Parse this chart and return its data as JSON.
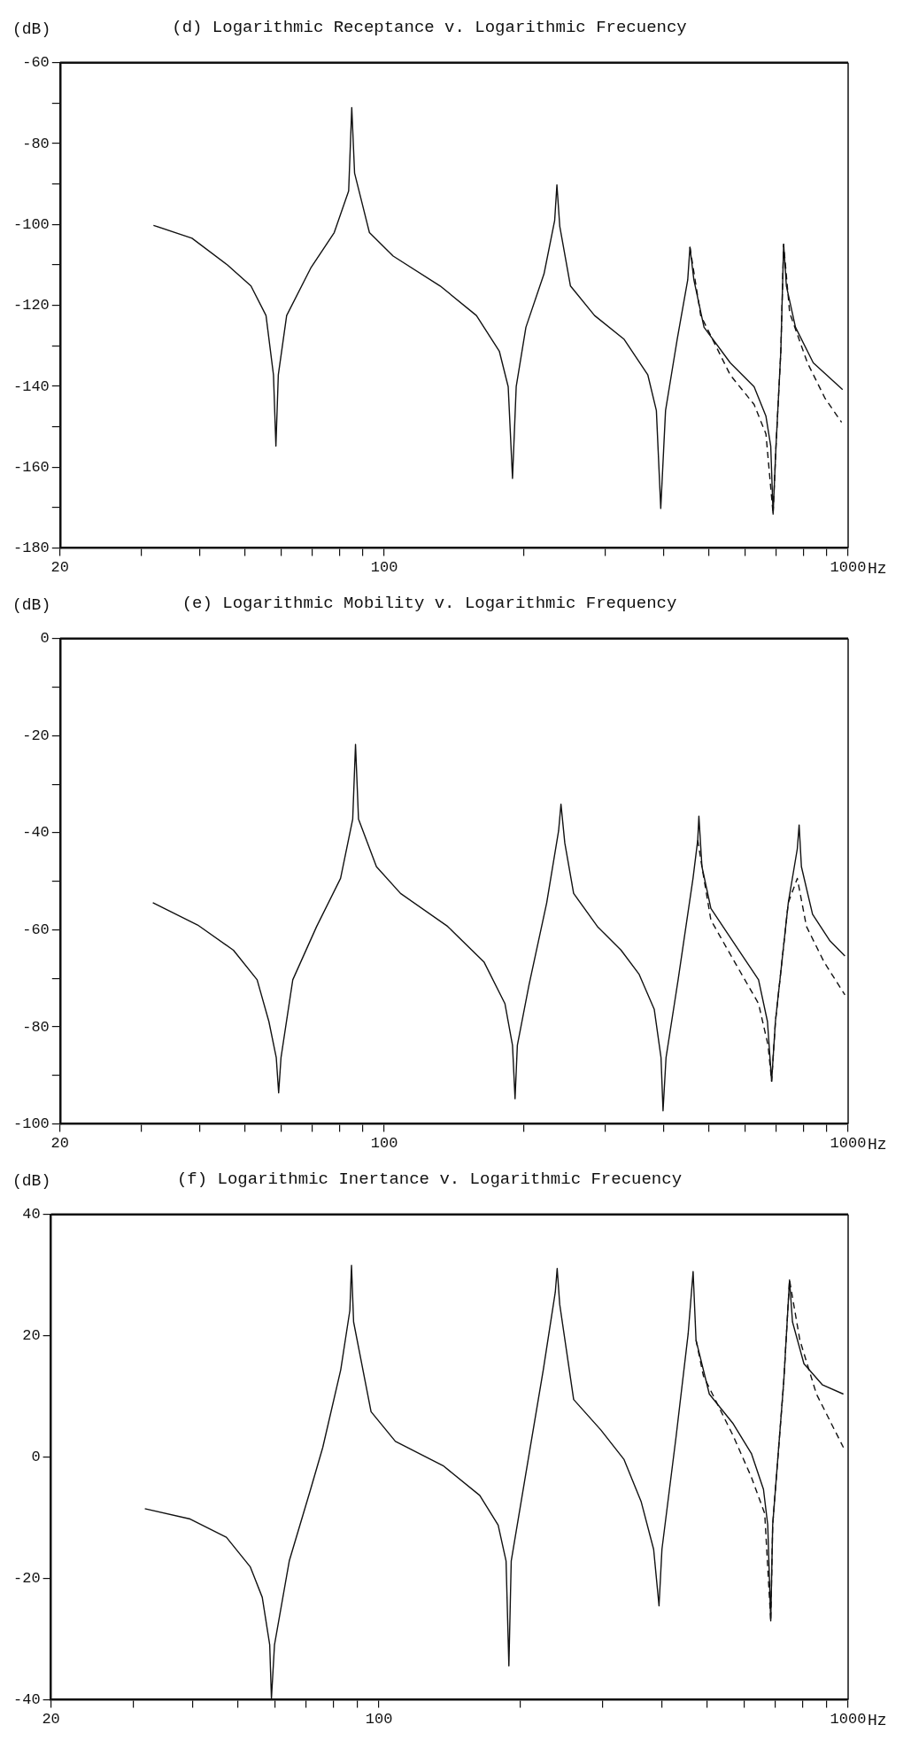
{
  "chart_data": [
    {
      "type": "line",
      "title": "(d) Logarithmic Receptance v. Logarithmic Frecuency",
      "xlabel": "Hz",
      "ylabel": "(dB)",
      "log": "x",
      "marker": "none",
      "xlim": [
        20,
        1000
      ],
      "ylim": [
        -180,
        -60
      ],
      "xticks": [
        20,
        {
          "value": 30,
          "label": null
        },
        {
          "value": 40,
          "label": null
        },
        {
          "value": 50,
          "label": null
        },
        {
          "value": 60,
          "label": null
        },
        {
          "value": 70,
          "label": null
        },
        {
          "value": 80,
          "label": null
        },
        {
          "value": 90,
          "label": null
        },
        100,
        {
          "value": 200,
          "label": null
        },
        {
          "value": 300,
          "label": null
        },
        {
          "value": 400,
          "label": null
        },
        {
          "value": 500,
          "label": null
        },
        {
          "value": 600,
          "label": null
        },
        {
          "value": 700,
          "label": null
        },
        {
          "value": 800,
          "label": null
        },
        {
          "value": 900,
          "label": null
        },
        1000
      ],
      "yticks": [
        -180,
        {
          "value": -170,
          "label": null
        },
        -160,
        {
          "value": -150,
          "label": null
        },
        -140,
        {
          "value": -130,
          "label": null
        },
        -120,
        {
          "value": -110,
          "label": null
        },
        -100,
        {
          "value": -90,
          "label": null
        },
        -80,
        {
          "value": -70,
          "label": null
        },
        -60
      ],
      "series": [
        {
          "color": "#111111",
          "line_style": "solid",
          "x": [
            31.8,
            38.5,
            45.9,
            51.6,
            55.6,
            57.7,
            58.4,
            59.1,
            61.6,
            69.4,
            78,
            83.8,
            85.1,
            86.3,
            92.9,
            104.5,
            132,
            158,
            177,
            185,
            189,
            192.5,
            202,
            221,
            233,
            235.6,
            239,
            252,
            284,
            329,
            370,
            386,
            394.5,
            404,
            428,
            451,
            456,
            465,
            489,
            557,
            627,
            665,
            681,
            689,
            699,
            716,
            726,
            736,
            770,
            841,
            973
          ],
          "values": [
            -100.2,
            -103.4,
            -110,
            -115.2,
            -122.5,
            -137.2,
            -154.8,
            -137.2,
            -122.5,
            -110.8,
            -102,
            -91.7,
            -71.1,
            -87.3,
            -102,
            -107.8,
            -115.2,
            -122.5,
            -131.3,
            -140.1,
            -162.8,
            -140.1,
            -125.4,
            -112.2,
            -99,
            -90.2,
            -100.5,
            -115.2,
            -122.5,
            -128.4,
            -137.2,
            -146,
            -170.2,
            -146,
            -128.4,
            -113.7,
            -105.6,
            -113.7,
            -125.4,
            -134.2,
            -140.1,
            -147.4,
            -154.8,
            -171.6,
            -154.8,
            -131.3,
            -104.9,
            -115.2,
            -125.4,
            -134.2,
            -140.8
          ]
        },
        {
          "color": "#111111",
          "line_style": "dashed",
          "x": [
            456,
            481,
            557,
            627,
            665,
            689,
            699,
            716,
            726,
            748,
            817,
            892,
            968
          ],
          "values": [
            -105.6,
            -122.5,
            -137.2,
            -144.5,
            -151.8,
            -171.6,
            -154.8,
            -131.3,
            -104.9,
            -121.8,
            -134.2,
            -143,
            -148.9
          ]
        }
      ]
    },
    {
      "type": "line",
      "title": "(e) Logarithmic Mobility v. Logarithmic Frequency",
      "xlabel": "Hz",
      "ylabel": "(dB)",
      "log": "x",
      "marker": "none",
      "xlim": [
        20,
        1000
      ],
      "ylim": [
        -100,
        0
      ],
      "xticks": [
        20,
        {
          "value": 30,
          "label": null
        },
        {
          "value": 40,
          "label": null
        },
        {
          "value": 50,
          "label": null
        },
        {
          "value": 60,
          "label": null
        },
        {
          "value": 70,
          "label": null
        },
        {
          "value": 80,
          "label": null
        },
        {
          "value": 90,
          "label": null
        },
        100,
        {
          "value": 200,
          "label": null
        },
        {
          "value": 300,
          "label": null
        },
        {
          "value": 400,
          "label": null
        },
        {
          "value": 500,
          "label": null
        },
        {
          "value": 600,
          "label": null
        },
        {
          "value": 700,
          "label": null
        },
        {
          "value": 800,
          "label": null
        },
        {
          "value": 900,
          "label": null
        },
        1000
      ],
      "yticks": [
        -100,
        {
          "value": -90,
          "label": null
        },
        -80,
        {
          "value": -70,
          "label": null
        },
        -60,
        {
          "value": -50,
          "label": null
        },
        -40,
        {
          "value": -30,
          "label": null
        },
        -20,
        {
          "value": -10,
          "label": null
        },
        0
      ],
      "series": [
        {
          "color": "#111111",
          "line_style": "solid",
          "x": [
            31.7,
            39.6,
            47.3,
            53.2,
            56.4,
            58.5,
            59.2,
            59.9,
            63.5,
            71.5,
            80.5,
            85.5,
            86.7,
            88,
            96.2,
            108.4,
            137,
            164,
            182,
            189,
            191.4,
            193.6,
            205,
            224,
            237.6,
            240.4,
            245,
            256,
            288,
            324,
            354,
            382,
            395,
            399,
            405,
            430,
            463,
            474,
            476.7,
            484,
            506,
            569,
            641,
            670,
            684,
            697,
            743,
            777,
            784,
            793,
            838,
            914,
            984
          ],
          "values": [
            -54.4,
            -59,
            -64.2,
            -70.3,
            -78.9,
            -86.3,
            -93.6,
            -86.3,
            -70.3,
            -59.3,
            -49.4,
            -37.2,
            -21.8,
            -37.2,
            -47,
            -52.5,
            -59.3,
            -66.6,
            -75.2,
            -83.8,
            -94.8,
            -83.8,
            -71.5,
            -54.4,
            -39.6,
            -34.1,
            -42.1,
            -52.5,
            -59.3,
            -64.2,
            -69.1,
            -76.4,
            -86.3,
            -97.3,
            -86.3,
            -70.3,
            -49.4,
            -41.5,
            -36.6,
            -47,
            -55.6,
            -62.9,
            -70.3,
            -78.9,
            -91.2,
            -78.9,
            -54.4,
            -43.3,
            -38.4,
            -47,
            -56.8,
            -62.3,
            -65.4
          ]
        },
        {
          "color": "#111111",
          "line_style": "dashed",
          "x": [
            474,
            484,
            506,
            569,
            641,
            672,
            684,
            697,
            743,
            777,
            813,
            887,
            984
          ],
          "values": [
            -41.5,
            -47,
            -58,
            -66.6,
            -75.2,
            -83.8,
            -91.2,
            -78.9,
            -54.4,
            -49.4,
            -59.3,
            -66.6,
            -73.4
          ]
        }
      ]
    },
    {
      "type": "line",
      "title": "(f) Logarithmic Inertance v. Logarithmic Frecuency",
      "xlabel": "Hz",
      "ylabel": "(dB)",
      "log": "x",
      "marker": "none",
      "xlim": [
        20,
        1000
      ],
      "ylim": [
        -40,
        40
      ],
      "xticks": [
        20,
        {
          "value": 30,
          "label": null
        },
        {
          "value": 40,
          "label": null
        },
        {
          "value": 50,
          "label": null
        },
        {
          "value": 60,
          "label": null
        },
        {
          "value": 70,
          "label": null
        },
        {
          "value": 80,
          "label": null
        },
        {
          "value": 90,
          "label": null
        },
        100,
        {
          "value": 200,
          "label": null
        },
        {
          "value": 300,
          "label": null
        },
        {
          "value": 400,
          "label": null
        },
        {
          "value": 500,
          "label": null
        },
        {
          "value": 600,
          "label": null
        },
        {
          "value": 700,
          "label": null
        },
        {
          "value": 800,
          "label": null
        },
        {
          "value": 900,
          "label": null
        },
        1000
      ],
      "yticks": [
        -40,
        -20,
        0,
        20,
        40
      ],
      "series": [
        {
          "color": "#111111",
          "line_style": "solid",
          "x": [
            31.7,
            39.6,
            47.3,
            53.2,
            56.4,
            58.5,
            59,
            59.9,
            64.4,
            71.5,
            75.9,
            82.9,
            86.7,
            87.4,
            88.3,
            96.2,
            108.4,
            137,
            164,
            179.5,
            186.6,
            189.2,
            191.4,
            205,
            224,
            237.6,
            239.8,
            242.8,
            260,
            297,
            333,
            362,
            385,
            395.3,
            401,
            430,
            456,
            467.3,
            474,
            506,
            569,
            622,
            660,
            674,
            684,
            690.5,
            729,
            750,
            761,
            805,
            882,
            977
          ],
          "values": [
            -8.5,
            -10.2,
            -13.2,
            -18.1,
            -23.1,
            -30.9,
            -39.8,
            -30.9,
            -17.1,
            -5.3,
            1.6,
            14.4,
            24.2,
            31.6,
            22.3,
            7.5,
            2.6,
            -1.4,
            -6.3,
            -11.2,
            -17.1,
            -34.4,
            -17.1,
            -3.3,
            14.4,
            27.2,
            31.1,
            25.2,
            9.5,
            4.5,
            -0.4,
            -7.3,
            -15.2,
            -24.5,
            -15.2,
            3.5,
            20.3,
            30.6,
            19.3,
            10.4,
            5.5,
            0.6,
            -5.3,
            -11.2,
            -27,
            -11.2,
            12.4,
            29.2,
            22.3,
            15.4,
            11.9,
            10.4
          ]
        },
        {
          "color": "#111111",
          "line_style": "dashed",
          "x": [
            474,
            491.5,
            569,
            622,
            664,
            684,
            690.5,
            729,
            750,
            789,
            856,
            977
          ],
          "values": [
            19.3,
            13.4,
            3.5,
            -3.3,
            -9.3,
            -27,
            -11.2,
            12.4,
            29.2,
            19.3,
            10.4,
            1.6
          ]
        }
      ]
    }
  ]
}
